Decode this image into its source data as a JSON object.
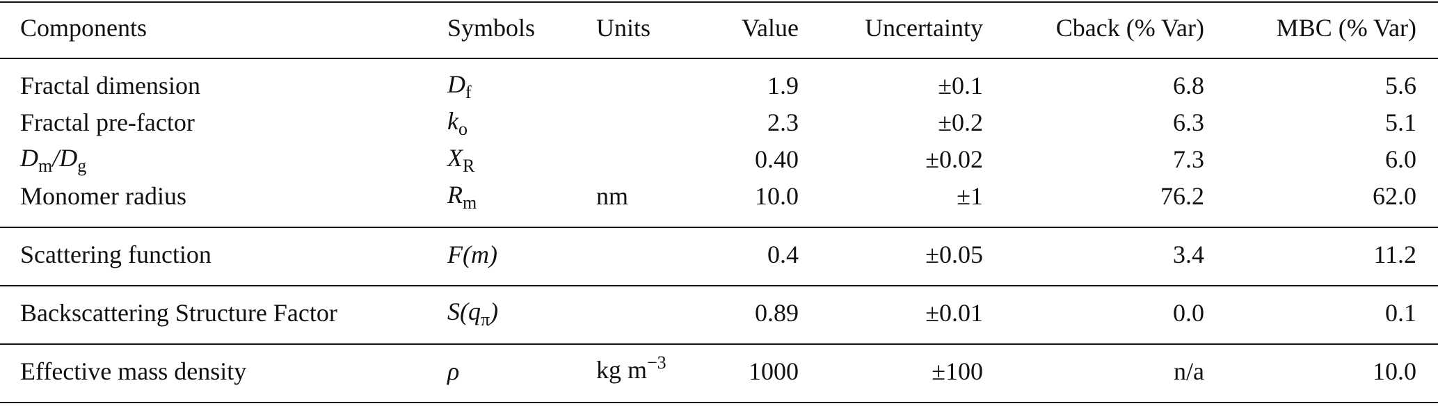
{
  "table": {
    "header": [
      "Components",
      "Symbols",
      "Units",
      "Value",
      "Uncertainty",
      "Cback (% Var)",
      "MBC (% Var)"
    ],
    "groups": [
      [
        {
          "component": [
            "Fractal dimension"
          ],
          "symbol": [
            "D",
            "f"
          ],
          "units": [],
          "value": "1.9",
          "uncertainty": "±0.1",
          "cback": "6.8",
          "mbc": "5.6"
        },
        {
          "component": [
            "Fractal pre-factor"
          ],
          "symbol": [
            "k",
            "o"
          ],
          "units": [],
          "value": "2.3",
          "uncertainty": "±0.2",
          "cback": "6.3",
          "mbc": "5.1"
        },
        {
          "component": [
            "D",
            "m",
            "/D",
            "g"
          ],
          "symbol": [
            "X",
            "R"
          ],
          "units": [],
          "value": "0.40",
          "uncertainty": "±0.02",
          "cback": "7.3",
          "mbc": "6.0"
        },
        {
          "component": [
            "Monomer radius"
          ],
          "symbol": [
            "R",
            "m"
          ],
          "units": [
            "nm"
          ],
          "value": "10.0",
          "uncertainty": "±1",
          "cback": "76.2",
          "mbc": "62.0"
        }
      ],
      [
        {
          "component": [
            "Scattering function"
          ],
          "symbol": [
            "F(m)"
          ],
          "units": [],
          "value": "0.4",
          "uncertainty": "±0.05",
          "cback": "3.4",
          "mbc": "11.2"
        }
      ],
      [
        {
          "component": [
            "Backscattering Structure Factor"
          ],
          "symbol": [
            "S(q",
            "π",
            ")"
          ],
          "units": [],
          "value": "0.89",
          "uncertainty": "±0.01",
          "cback": "0.0",
          "mbc": "0.1"
        }
      ],
      [
        {
          "component": [
            "Effective mass density"
          ],
          "symbol": [
            "ρ"
          ],
          "units": [
            "kg m",
            "−3"
          ],
          "value": "1000",
          "uncertainty": "±100",
          "cback": "n/a",
          "mbc": "10.0"
        }
      ]
    ]
  }
}
